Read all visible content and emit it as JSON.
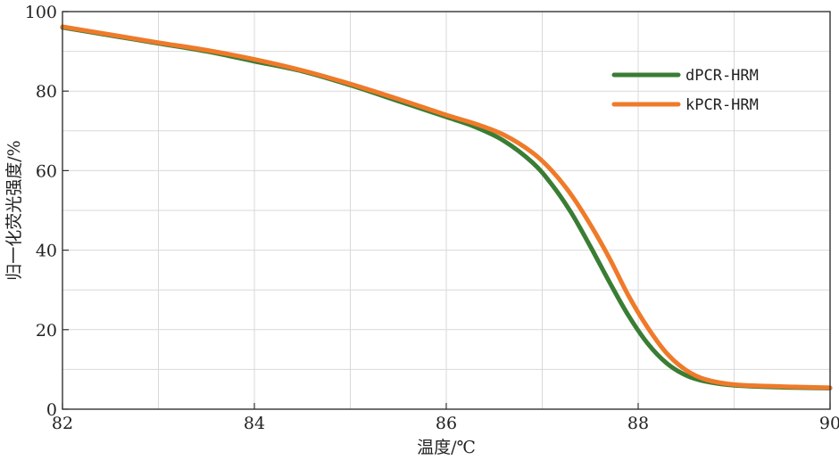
{
  "chart_data": {
    "type": "line",
    "title": "",
    "xlabel": "温度/℃",
    "ylabel": "归一化荧光强度/%",
    "xlim": [
      82,
      90
    ],
    "ylim": [
      0,
      100
    ],
    "xticks": [
      82,
      84,
      86,
      88,
      90
    ],
    "yticks": [
      0,
      20,
      40,
      60,
      80,
      100
    ],
    "grid": true,
    "legend_position": "top-right",
    "series": [
      {
        "name": "dPCR-HRM",
        "color": "#3a7d34",
        "x": [
          82.0,
          82.5,
          83.0,
          83.5,
          84.0,
          84.5,
          85.0,
          85.5,
          86.0,
          86.3,
          86.6,
          86.9,
          87.1,
          87.3,
          87.5,
          87.7,
          87.9,
          88.1,
          88.3,
          88.5,
          88.7,
          89.0,
          89.5,
          90.0
        ],
        "y": [
          96.0,
          94.0,
          92.0,
          90.0,
          87.5,
          85.0,
          81.5,
          77.5,
          73.5,
          71.0,
          67.5,
          62.0,
          56.5,
          49.5,
          41.0,
          32.0,
          23.5,
          16.5,
          11.5,
          8.5,
          7.0,
          6.0,
          5.5,
          5.3
        ]
      },
      {
        "name": "kPCR-HRM",
        "color": "#ef7a2a",
        "x": [
          82.0,
          82.5,
          83.0,
          83.5,
          84.0,
          84.5,
          85.0,
          85.5,
          86.0,
          86.3,
          86.6,
          86.9,
          87.1,
          87.3,
          87.5,
          87.7,
          87.9,
          88.1,
          88.3,
          88.5,
          88.7,
          89.0,
          89.5,
          90.0
        ],
        "y": [
          96.2,
          94.2,
          92.2,
          90.3,
          88.0,
          85.2,
          81.8,
          78.0,
          74.0,
          71.8,
          69.0,
          64.5,
          60.0,
          54.0,
          46.5,
          38.0,
          28.5,
          20.5,
          14.0,
          9.8,
          7.5,
          6.2,
          5.7,
          5.4
        ]
      }
    ]
  }
}
